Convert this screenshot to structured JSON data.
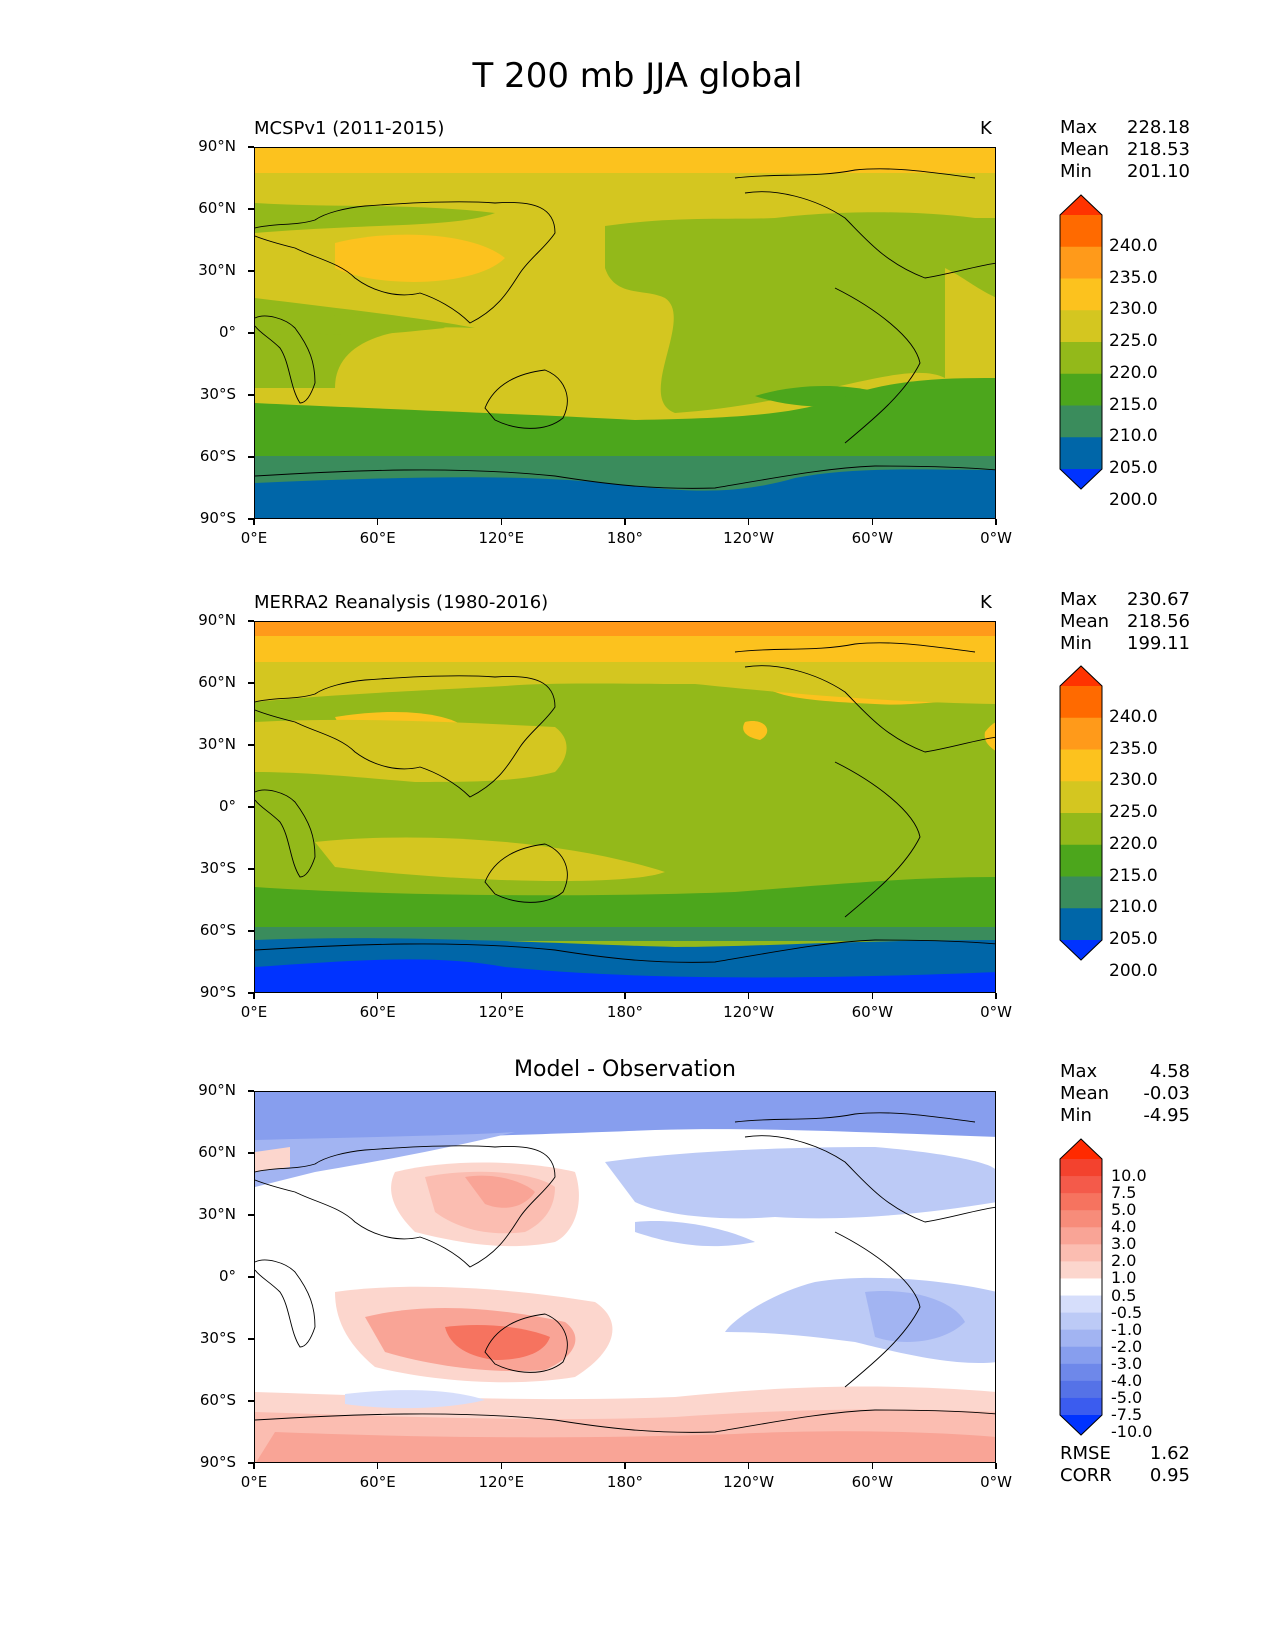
{
  "title": "T 200 mb JJA global",
  "x_ticks": [
    "0°E",
    "60°E",
    "120°E",
    "180°",
    "120°W",
    "60°W",
    "0°W"
  ],
  "y_ticks": [
    "90°N",
    "60°N",
    "30°N",
    "0°",
    "30°S",
    "60°S",
    "90°S"
  ],
  "panels": [
    {
      "title": "MCSPv1 (2011-2015)",
      "units": "K",
      "stats": {
        "labels": [
          "Max",
          "Mean",
          "Min"
        ],
        "values": [
          "228.18",
          "218.53",
          "201.10"
        ]
      }
    },
    {
      "title": "MERRA2 Reanalysis (1980-2016)",
      "units": "K",
      "stats": {
        "labels": [
          "Max",
          "Mean",
          "Min"
        ],
        "values": [
          "230.67",
          "218.56",
          "199.11"
        ]
      }
    },
    {
      "title": "Model - Observation",
      "units": "",
      "stats": {
        "labels": [
          "Max",
          "Mean",
          "Min"
        ],
        "values": [
          "4.58",
          "-0.03",
          "-4.95"
        ]
      },
      "metrics": {
        "labels": [
          "RMSE",
          "CORR"
        ],
        "values": [
          "1.62",
          "0.95"
        ]
      }
    }
  ],
  "colorbar_abs": {
    "labels": [
      "240.0",
      "235.0",
      "230.0",
      "225.0",
      "220.0",
      "215.0",
      "210.0",
      "205.0",
      "200.0"
    ],
    "colors": [
      "#ff3300",
      "#ff6a00",
      "#ff9a1a",
      "#fcc21e",
      "#d4c620",
      "#93b91a",
      "#4ca61c",
      "#3a8c5c",
      "#0066a8",
      "#0033ff"
    ]
  },
  "colorbar_diff": {
    "labels": [
      "10.0",
      "7.5",
      "5.0",
      "4.0",
      "3.0",
      "2.0",
      "1.0",
      "0.5",
      "-0.5",
      "-1.0",
      "-2.0",
      "-3.0",
      "-4.0",
      "-5.0",
      "-7.5",
      "-10.0"
    ],
    "colors": [
      "#ff2a00",
      "#f3422e",
      "#f45a4a",
      "#f6735f",
      "#f78c7a",
      "#f9a496",
      "#fbbdb1",
      "#fcd6cd",
      "#ffffff",
      "#d6defb",
      "#bccaf6",
      "#a2b4f2",
      "#879eee",
      "#6e88ea",
      "#5572e7",
      "#3b5cef",
      "#0033ff"
    ]
  }
}
